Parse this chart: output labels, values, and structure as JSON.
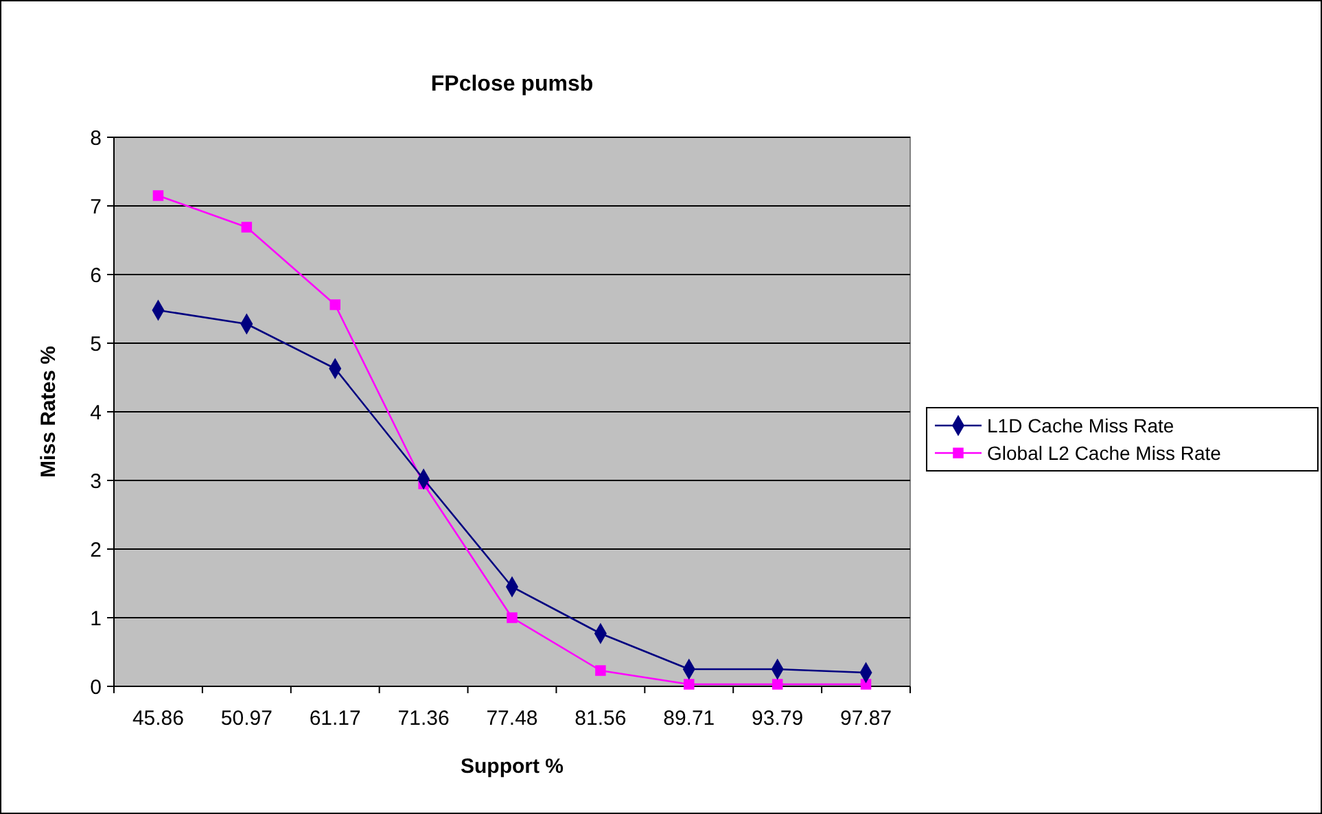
{
  "chart_data": {
    "type": "line",
    "title": "FPclose pumsb",
    "xlabel": "Support %",
    "ylabel": "Miss Rates %",
    "categories": [
      "45.86",
      "50.97",
      "61.17",
      "71.36",
      "77.48",
      "81.56",
      "89.71",
      "93.79",
      "97.87"
    ],
    "series": [
      {
        "name": "L1D Cache Miss Rate",
        "color": "#000080",
        "marker": "diamond",
        "values": [
          5.48,
          5.28,
          4.63,
          3.02,
          1.45,
          0.77,
          0.25,
          0.25,
          0.2
        ]
      },
      {
        "name": "Global L2 Cache Miss Rate",
        "color": "#ff00ff",
        "marker": "square",
        "values": [
          7.15,
          6.69,
          5.56,
          2.95,
          1.0,
          0.23,
          0.03,
          0.03,
          0.03
        ]
      }
    ],
    "ylim": [
      0,
      8
    ],
    "yticks": [
      0,
      1,
      2,
      3,
      4,
      5,
      6,
      7,
      8
    ],
    "grid": "y",
    "legend": "right"
  }
}
